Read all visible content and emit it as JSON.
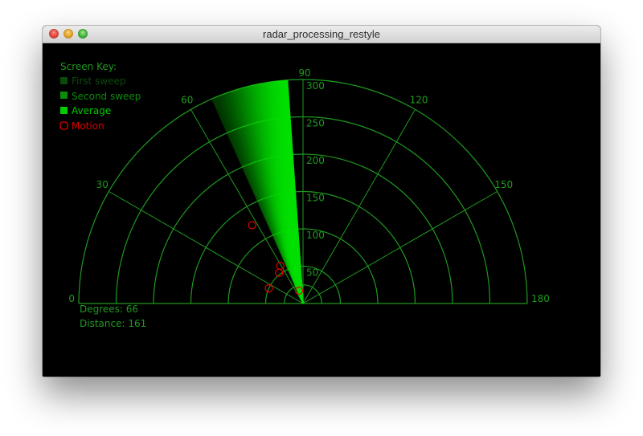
{
  "window": {
    "title": "radar_processing_restyle"
  },
  "colors": {
    "grid": "#1f9a1f",
    "sweep": "#00e000",
    "first_sweep": "#0b4a0b",
    "second_sweep": "#0a8c0a",
    "average": "#00cc00",
    "motion": "#e00000"
  },
  "key": {
    "title": "Screen Key:",
    "items": [
      {
        "label": "First sweep",
        "color": "#0b4a0b"
      },
      {
        "label": "Second sweep",
        "color": "#0a8c0a"
      },
      {
        "label": "Average",
        "color": "#00cc00"
      },
      {
        "label": "Motion",
        "color": "#e00000"
      }
    ]
  },
  "radar": {
    "angle_labels": [
      "0",
      "30",
      "60",
      "90",
      "120",
      "150",
      "180"
    ],
    "distance_labels": [
      "50",
      "100",
      "150",
      "200",
      "250",
      "300"
    ],
    "max_distance": 300,
    "sweep_start_deg": 66,
    "sweep_end_deg": 86,
    "sweep_distance": 300,
    "motion_points": [
      {
        "angle_deg": 24,
        "distance": 50
      },
      {
        "angle_deg": 52,
        "distance": 52
      },
      {
        "angle_deg": 59,
        "distance": 59
      },
      {
        "angle_deg": 73,
        "distance": 18
      },
      {
        "angle_deg": 57,
        "distance": 125
      }
    ]
  },
  "readout": {
    "degrees": "Degrees: 66",
    "distance": "Distance: 161"
  }
}
